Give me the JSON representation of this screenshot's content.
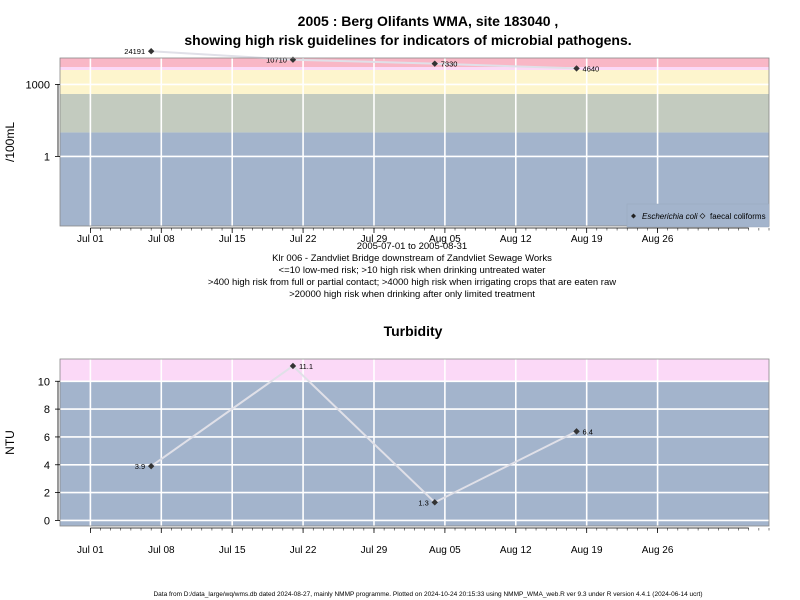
{
  "header": {
    "title_line1": "2005 : Berg Olifants WMA, site 183040 ,",
    "title_line2": "showing high risk guidelines for indicators of microbial pathogens."
  },
  "colors": {
    "plot_bg": "#a3b4cc",
    "green_band": "#c3cbbf",
    "yellow_band": "#fdf5cd",
    "pink_band": "#fbd9f7",
    "red_band": "#f9b7c6",
    "gridline": "#ffffff",
    "series_line": "#e0e0e8",
    "point": "#333333"
  },
  "chart_data": [
    {
      "type": "line",
      "ylabel": "/100mL",
      "y_scale": "log10",
      "ylim": [
        0.00126,
        12600
      ],
      "yticks": [
        {
          "value": 1,
          "label": "1"
        },
        {
          "value": 1000,
          "label": "1000"
        }
      ],
      "x_date_range": [
        "2005-06-28",
        "2005-09-06"
      ],
      "x_ticks": [
        {
          "date": "2005-07-01",
          "label": "Jul 01"
        },
        {
          "date": "2005-07-08",
          "label": "Jul 08"
        },
        {
          "date": "2005-07-15",
          "label": "Jul 15"
        },
        {
          "date": "2005-07-22",
          "label": "Jul 22"
        },
        {
          "date": "2005-07-29",
          "label": "Jul 29"
        },
        {
          "date": "2005-08-05",
          "label": "Aug 05"
        },
        {
          "date": "2005-08-12",
          "label": "Aug 12"
        },
        {
          "date": "2005-08-19",
          "label": "Aug 19"
        },
        {
          "date": "2005-08-26",
          "label": "Aug 26"
        }
      ],
      "bands": [
        {
          "from": 0.00126,
          "to": 10,
          "color": "#a3b4cc"
        },
        {
          "from": 10,
          "to": 400,
          "color": "#c3cbbf"
        },
        {
          "from": 400,
          "to": 4000,
          "color": "#fdf5cd"
        },
        {
          "from": 4000,
          "to": 20000,
          "color": "#fbd9f7"
        },
        {
          "from": 20000,
          "to": 12600,
          "color": "#f9b7c6"
        }
      ],
      "series": [
        {
          "name": "Escherichia coli",
          "points": [
            {
              "date": "2005-07-07",
              "value": 24191,
              "label": "24191"
            },
            {
              "date": "2005-07-21",
              "value": 10710,
              "label": "10710"
            },
            {
              "date": "2005-08-04",
              "value": 7330,
              "label": "7330"
            },
            {
              "date": "2005-08-18",
              "value": 4640,
              "label": "4640"
            }
          ]
        }
      ],
      "legend": {
        "position": "bottom-right",
        "items": [
          "Escherichia coli",
          "faecal coliforms"
        ]
      },
      "grid": true
    },
    {
      "type": "line",
      "title": "Turbidity",
      "ylabel": "NTU",
      "ylim": [
        -0.4,
        11.6
      ],
      "yticks": [
        {
          "value": 0,
          "label": "0"
        },
        {
          "value": 2,
          "label": "2"
        },
        {
          "value": 4,
          "label": "4"
        },
        {
          "value": 6,
          "label": "6"
        },
        {
          "value": 8,
          "label": "8"
        },
        {
          "value": 10,
          "label": "10"
        }
      ],
      "x_date_range": [
        "2005-06-28",
        "2005-09-06"
      ],
      "x_ticks": [
        {
          "date": "2005-07-01",
          "label": "Jul 01"
        },
        {
          "date": "2005-07-08",
          "label": "Jul 08"
        },
        {
          "date": "2005-07-15",
          "label": "Jul 15"
        },
        {
          "date": "2005-07-22",
          "label": "Jul 22"
        },
        {
          "date": "2005-07-29",
          "label": "Jul 29"
        },
        {
          "date": "2005-08-05",
          "label": "Aug 05"
        },
        {
          "date": "2005-08-12",
          "label": "Aug 12"
        },
        {
          "date": "2005-08-19",
          "label": "Aug 19"
        },
        {
          "date": "2005-08-26",
          "label": "Aug 26"
        }
      ],
      "bands": [
        {
          "from": -0.4,
          "to": 10,
          "color": "#a3b4cc"
        },
        {
          "from": 10,
          "to": 11.6,
          "color": "#fbd9f7"
        }
      ],
      "series": [
        {
          "points": [
            {
              "date": "2005-07-07",
              "value": 3.9,
              "label": "3.9"
            },
            {
              "date": "2005-07-21",
              "value": 11.1,
              "label": "11.1"
            },
            {
              "date": "2005-08-04",
              "value": 1.3,
              "label": "1.3"
            },
            {
              "date": "2005-08-18",
              "value": 6.4,
              "label": "6.4"
            }
          ]
        }
      ],
      "grid": true
    }
  ],
  "notes": {
    "date_range": "2005-07-01 to 2005-08-31",
    "site_desc": "Klr 006 - Zandvliet Bridge downstream of Zandvliet Sewage Works",
    "risk_line1": "<=10 low-med risk; >10 high risk when drinking untreated water",
    "risk_line2": ">400 high risk from full or partial contact; >4000 high risk when irrigating crops that are eaten raw",
    "risk_line3": ">20000 high risk when drinking after only limited treatment"
  },
  "footer": {
    "text": "Data from D:/data_large/wq/wms.db dated 2024-08-27, mainly NMMP programme. Plotted on 2024-10-24 20:15:33 using NMMP_WMA_web.R ver 9.3 under R version 4.4.1 (2024-06-14 ucrt)"
  }
}
